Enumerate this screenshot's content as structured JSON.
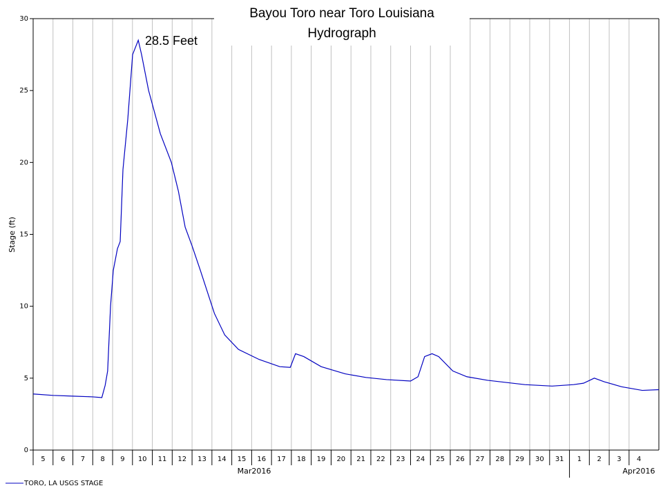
{
  "chart_data": {
    "type": "line",
    "title": [
      "Bayou Toro near Toro Louisiana",
      "Hydrograph"
    ],
    "y_label": "Stage (ft)",
    "annotation": "28.5 Feet",
    "month_labels": [
      "Mar2016",
      "Apr2016"
    ],
    "month_boundary": "2016-04-01T00:00",
    "grid": true,
    "legend": "bottom-left",
    "xlim": [
      "2016-03-05T00:00",
      "2016-04-05T12:00"
    ],
    "ylim": [
      0,
      30
    ],
    "yticks": [
      0,
      5,
      10,
      15,
      20,
      25,
      30
    ],
    "xticks": [
      {
        "value": "2016-03-05T00:00",
        "label": "5"
      },
      {
        "value": "2016-03-06T00:00",
        "label": "6"
      },
      {
        "value": "2016-03-07T00:00",
        "label": "7"
      },
      {
        "value": "2016-03-08T00:00",
        "label": "8"
      },
      {
        "value": "2016-03-09T00:00",
        "label": "9"
      },
      {
        "value": "2016-03-10T00:00",
        "label": "10"
      },
      {
        "value": "2016-03-11T00:00",
        "label": "11"
      },
      {
        "value": "2016-03-12T00:00",
        "label": "12"
      },
      {
        "value": "2016-03-13T00:00",
        "label": "13"
      },
      {
        "value": "2016-03-14T00:00",
        "label": "14"
      },
      {
        "value": "2016-03-15T00:00",
        "label": "15"
      },
      {
        "value": "2016-03-16T00:00",
        "label": "16"
      },
      {
        "value": "2016-03-17T00:00",
        "label": "17"
      },
      {
        "value": "2016-03-18T00:00",
        "label": "18"
      },
      {
        "value": "2016-03-19T00:00",
        "label": "19"
      },
      {
        "value": "2016-03-20T00:00",
        "label": "20"
      },
      {
        "value": "2016-03-21T00:00",
        "label": "21"
      },
      {
        "value": "2016-03-22T00:00",
        "label": "22"
      },
      {
        "value": "2016-03-23T00:00",
        "label": "23"
      },
      {
        "value": "2016-03-24T00:00",
        "label": "24"
      },
      {
        "value": "2016-03-25T00:00",
        "label": "25"
      },
      {
        "value": "2016-03-26T00:00",
        "label": "26"
      },
      {
        "value": "2016-03-27T00:00",
        "label": "27"
      },
      {
        "value": "2016-03-28T00:00",
        "label": "28"
      },
      {
        "value": "2016-03-29T00:00",
        "label": "29"
      },
      {
        "value": "2016-03-30T00:00",
        "label": "30"
      },
      {
        "value": "2016-03-31T00:00",
        "label": "31"
      },
      {
        "value": "2016-04-01T00:00",
        "label": "1"
      },
      {
        "value": "2016-04-02T00:00",
        "label": "2"
      },
      {
        "value": "2016-04-03T00:00",
        "label": "3"
      },
      {
        "value": "2016-04-04T00:00",
        "label": "4"
      }
    ],
    "x": [
      "2016-03-05T00:00",
      "2016-03-06T00:00",
      "2016-03-07T00:00",
      "2016-03-08T00:00",
      "2016-03-08T11:00",
      "2016-03-08T15:00",
      "2016-03-08T18:00",
      "2016-03-08T21:30",
      "2016-03-09T00:50",
      "2016-03-09T05:50",
      "2016-03-09T09:10",
      "2016-03-09T12:30",
      "2016-03-09T18:20",
      "2016-03-10T00:10",
      "2016-03-10T07:00",
      "2016-03-10T11:00",
      "2016-03-10T19:30",
      "2016-03-11T09:40",
      "2016-03-11T23:00",
      "2016-03-12T07:30",
      "2016-03-12T15:40",
      "2016-03-13T00:00",
      "2016-03-13T10:00",
      "2016-03-14T03:00",
      "2016-03-14T15:30",
      "2016-03-15T08:00",
      "2016-03-16T09:00",
      "2016-03-17T10:00",
      "2016-03-17T22:40",
      "2016-03-18T05:00",
      "2016-03-18T15:00",
      "2016-03-19T12:00",
      "2016-03-20T17:00",
      "2016-03-21T18:00",
      "2016-03-22T19:00",
      "2016-03-24T00:00",
      "2016-03-24T09:00",
      "2016-03-24T17:00",
      "2016-03-25T02:00",
      "2016-03-25T10:00",
      "2016-03-26T03:00",
      "2016-03-26T20:00",
      "2016-03-27T21:00",
      "2016-03-29T18:00",
      "2016-03-31T03:00",
      "2016-04-01T05:00",
      "2016-04-01T17:00",
      "2016-04-02T06:00",
      "2016-04-02T18:00",
      "2016-04-03T15:00",
      "2016-04-04T16:00",
      "2016-04-05T12:00"
    ],
    "series": [
      {
        "name": "TORO, LA USGS STAGE",
        "color": "#0000c0",
        "values": [
          3.9,
          3.8,
          3.75,
          3.7,
          3.65,
          4.5,
          5.5,
          10,
          12.5,
          14,
          14.5,
          19.5,
          23,
          27.5,
          28.5,
          27.5,
          25,
          22,
          20,
          18,
          15.5,
          14.2,
          12.5,
          9.5,
          8,
          7,
          6.3,
          5.8,
          5.75,
          6.7,
          6.5,
          5.8,
          5.3,
          5.05,
          4.9,
          4.8,
          5.1,
          6.5,
          6.7,
          6.5,
          5.5,
          5.1,
          4.85,
          4.55,
          4.45,
          4.55,
          4.65,
          5.0,
          4.75,
          4.4,
          4.15,
          4.2
        ]
      }
    ]
  }
}
